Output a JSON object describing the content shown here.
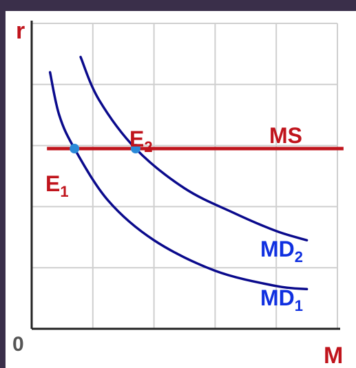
{
  "chart_data": {
    "type": "line",
    "title": "",
    "xlabel": "M",
    "ylabel": "r",
    "origin_label": "0",
    "xlim": [
      0,
      10
    ],
    "ylim": [
      0,
      10
    ],
    "grid": true,
    "colors": {
      "money_supply": "#c0141c",
      "money_demand": "#0a0a8c",
      "equilibrium_points": "#2a8ad8",
      "axis_labels": "#c0141c",
      "origin": "#555555",
      "grid": "#cfcfcf",
      "axes": "#222222"
    },
    "series": [
      {
        "name": "MS",
        "kind": "horizontal",
        "points": [
          [
            0.5,
            5.9
          ],
          [
            10.2,
            5.9
          ]
        ]
      },
      {
        "name": "MD1",
        "label_main": "MD",
        "label_sub": "1",
        "points": [
          [
            0.6,
            8.4
          ],
          [
            0.9,
            7.0
          ],
          [
            1.4,
            5.9
          ],
          [
            2.5,
            4.2
          ],
          [
            4.0,
            2.9
          ],
          [
            6.0,
            1.9
          ],
          [
            8.0,
            1.4
          ],
          [
            9.0,
            1.3
          ]
        ]
      },
      {
        "name": "MD2",
        "label_main": "MD",
        "label_sub": "2",
        "points": [
          [
            1.6,
            8.9
          ],
          [
            2.2,
            7.5
          ],
          [
            3.4,
            5.9
          ],
          [
            5.0,
            4.6
          ],
          [
            6.6,
            3.8
          ],
          [
            8.0,
            3.2
          ],
          [
            9.0,
            2.9
          ]
        ]
      }
    ],
    "equilibria": [
      {
        "name": "E1",
        "label_main": "E",
        "label_sub": "1",
        "x": 1.4,
        "y": 5.9
      },
      {
        "name": "E2",
        "label_main": "E",
        "label_sub": "2",
        "x": 3.4,
        "y": 5.9
      }
    ]
  }
}
